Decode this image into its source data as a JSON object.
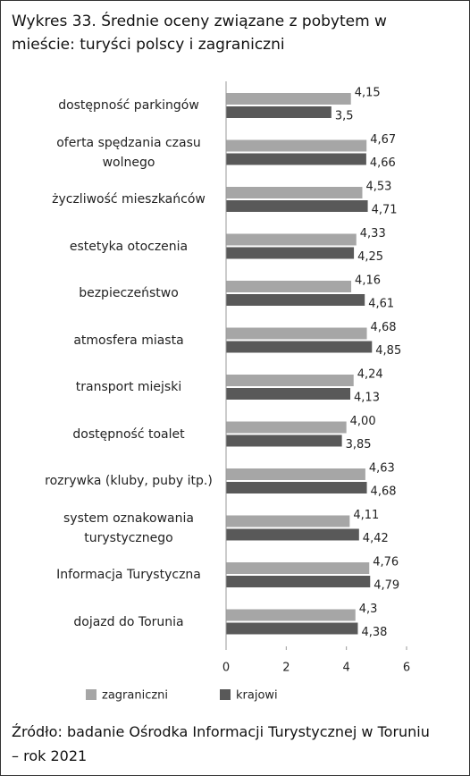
{
  "chart_data": {
    "type": "bar",
    "orientation": "horizontal",
    "title": "Wykres 33. Średnie oceny związane z pobytem w mieście: turyści polscy i zagraniczni",
    "source": "Źródło: badanie Ośrodka Informacji Turystycznej w Toruniu – rok 2021",
    "categories": [
      "dostępność parkingów",
      "oferta spędzania czasu wolnego",
      "życzliwość mieszkańców",
      "estetyka otoczenia",
      "bezpieczeństwo",
      "atmosfera miasta",
      "transport miejski",
      "dostępność toalet",
      "rozrywka (kluby, puby itp.)",
      "system oznakowania turystycznego",
      "Informacja Turystyczna",
      "dojazd do Torunia"
    ],
    "series": [
      {
        "name": "zagraniczni",
        "color": "#a6a6a6",
        "values": [
          4.15,
          4.67,
          4.53,
          4.33,
          4.16,
          4.68,
          4.24,
          4.0,
          4.63,
          4.11,
          4.76,
          4.3
        ],
        "value_labels": [
          "4,15",
          "4,67",
          "4,53",
          "4,33",
          "4,16",
          "4,68",
          "4,24",
          "4,00",
          "4,63",
          "4,11",
          "4,76",
          "4,3"
        ]
      },
      {
        "name": "krajowi",
        "color": "#595959",
        "values": [
          3.5,
          4.66,
          4.71,
          4.25,
          4.61,
          4.85,
          4.13,
          3.85,
          4.68,
          4.42,
          4.79,
          4.38
        ],
        "value_labels": [
          "3,5",
          "4,66",
          "4,71",
          "4,25",
          "4,61",
          "4,85",
          "4,13",
          "3,85",
          "4,68",
          "4,42",
          "4,79",
          "4,38"
        ]
      }
    ],
    "xlim": [
      0,
      6
    ],
    "xticks": [
      0,
      2,
      4,
      6
    ],
    "grid": false,
    "legend": "bottom"
  }
}
